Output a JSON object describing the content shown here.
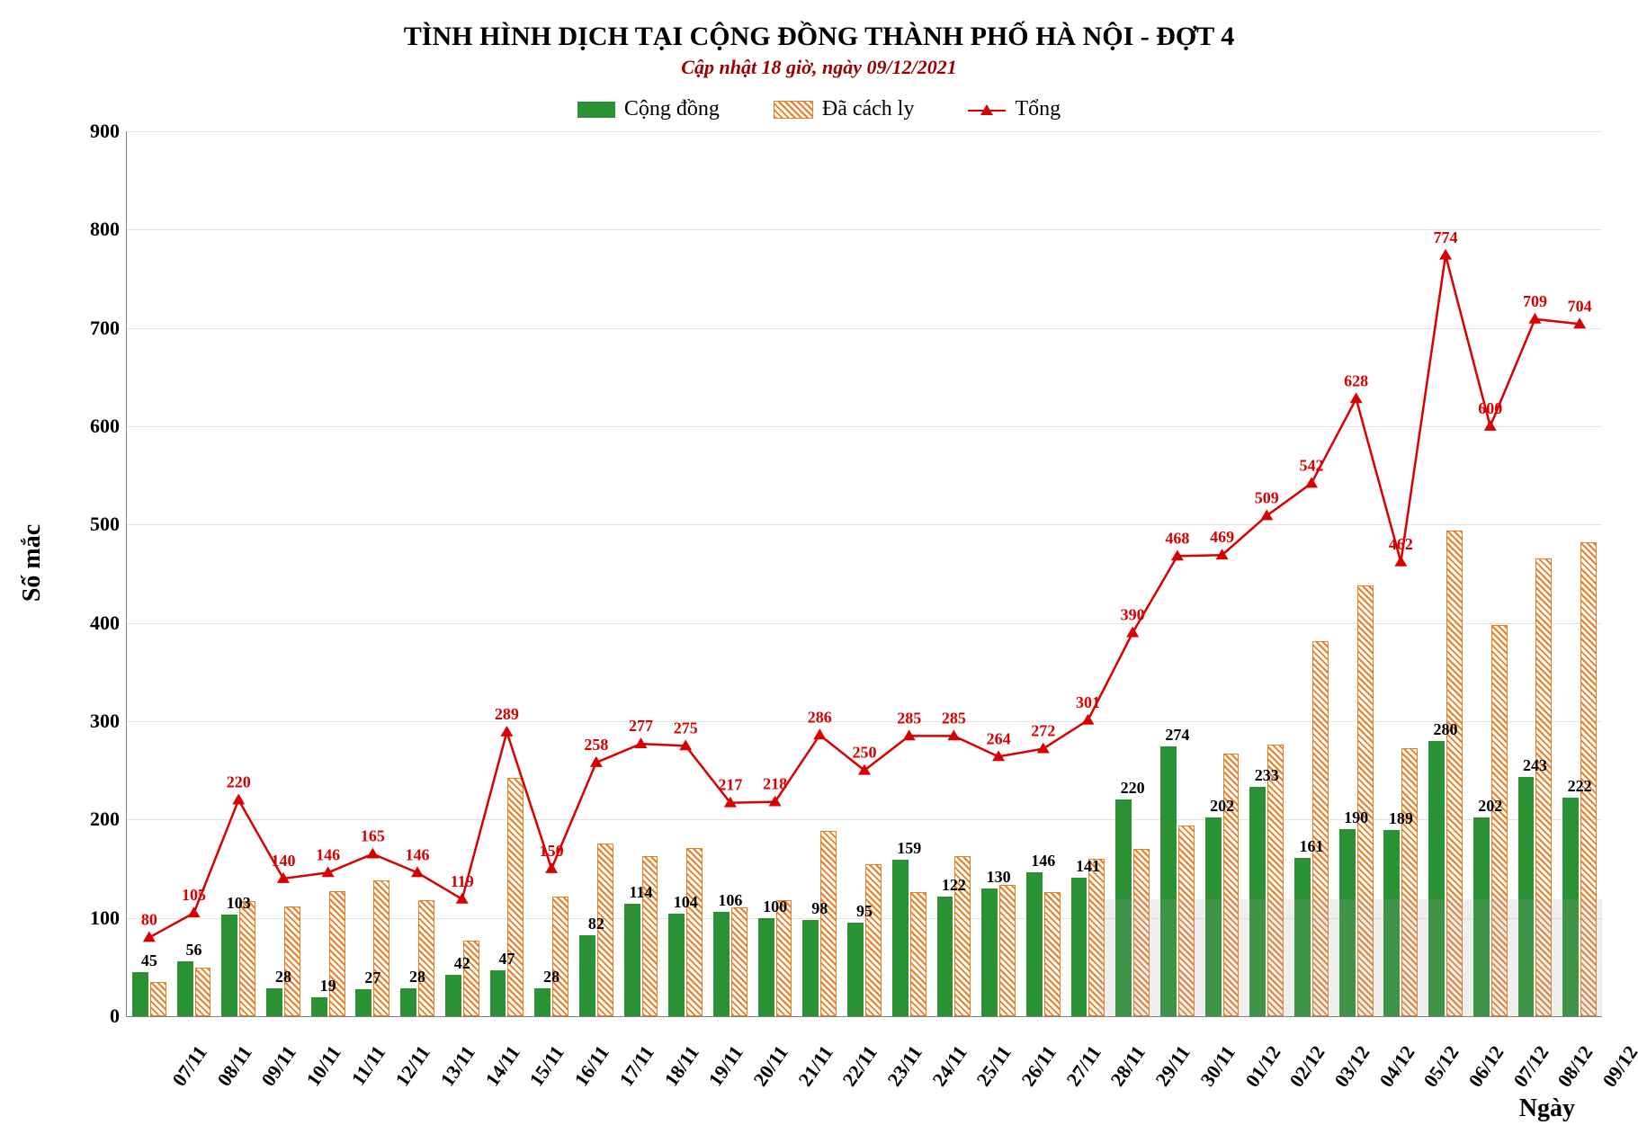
{
  "title": "TÌNH HÌNH DỊCH TẠI CỘNG ĐỒNG THÀNH PHỐ HÀ NỘI - ĐỢT 4",
  "subtitle": "Cập nhật 18 giờ, ngày 09/12/2021",
  "legend": {
    "series1": "Cộng đồng",
    "series2": "Đã cách ly",
    "series3": "Tổng"
  },
  "ylabel": "Số mắc",
  "xlabel": "Ngày",
  "chart": {
    "type": "combo-bar-line",
    "ylim": [
      0,
      900
    ],
    "ytick_step": 100,
    "background_color": "#ffffff",
    "grid_color": "#e4e4e4",
    "axis_color": "#808080",
    "bar1_color": "#2a9134",
    "bar2_stroke": "#ea7e23",
    "line_color": "#d90000",
    "title_fontsize": 30,
    "subtitle_fontsize": 22,
    "subtitle_color": "#9a0000",
    "label_fontsize": 28,
    "tick_fontsize": 22,
    "datalabel_fontsize": 18,
    "categories": [
      "07/11",
      "08/11",
      "09/11",
      "10/11",
      "11/11",
      "12/11",
      "13/11",
      "14/11",
      "15/11",
      "16/11",
      "17/11",
      "18/11",
      "19/11",
      "20/11",
      "21/11",
      "22/11",
      "23/11",
      "24/11",
      "25/11",
      "26/11",
      "27/11",
      "28/11",
      "29/11",
      "30/11",
      "01/12",
      "02/12",
      "03/12",
      "04/12",
      "05/12",
      "06/12",
      "07/12",
      "08/12",
      "09/12"
    ],
    "series_bar1_label_values": [
      45,
      56,
      103,
      28,
      19,
      27,
      28,
      42,
      47,
      28,
      82,
      114,
      104,
      106,
      100,
      98,
      95,
      159,
      122,
      130,
      146,
      141,
      220,
      274,
      202,
      233,
      161,
      190,
      189,
      280,
      202,
      243,
      222
    ],
    "series_bar1_values": [
      45,
      56,
      103,
      28,
      19,
      27,
      28,
      42,
      47,
      28,
      82,
      114,
      104,
      106,
      100,
      98,
      95,
      159,
      122,
      130,
      146,
      141,
      220,
      274,
      202,
      233,
      161,
      190,
      189,
      280,
      202,
      243,
      222
    ],
    "series_bar2_values": [
      35,
      49,
      117,
      112,
      127,
      138,
      118,
      77,
      242,
      122,
      176,
      163,
      171,
      111,
      118,
      188,
      155,
      126,
      163,
      134,
      126,
      160,
      170,
      194,
      267,
      276,
      381,
      438,
      273,
      494,
      398,
      466,
      482
    ],
    "series_line_values": [
      80,
      105,
      220,
      140,
      146,
      165,
      146,
      119,
      289,
      150,
      258,
      277,
      275,
      217,
      218,
      286,
      250,
      285,
      285,
      264,
      272,
      301,
      390,
      468,
      469,
      509,
      542,
      628,
      462,
      774,
      600,
      709,
      704
    ]
  }
}
